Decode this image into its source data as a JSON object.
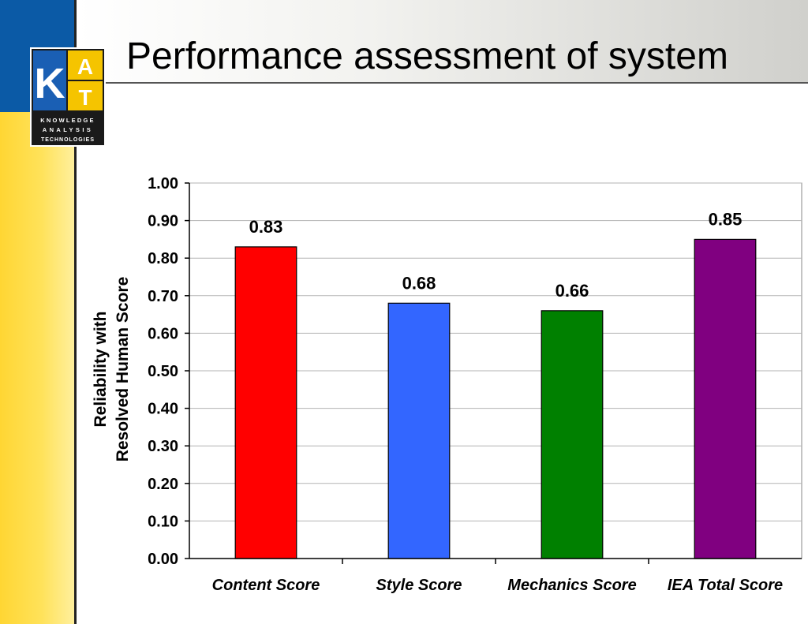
{
  "slide": {
    "title": "Performance assessment of system",
    "logo": {
      "letters": [
        "K",
        "A",
        "T"
      ],
      "lines": [
        "KNOWLEDGE",
        "ANALYSIS",
        "TECHNOLOGIES"
      ]
    }
  },
  "colors": {
    "accent_blue": "#0b5aa6",
    "accent_yellow": "#ffd633"
  },
  "chart_data": {
    "type": "bar",
    "title": "",
    "xlabel": "",
    "ylabel": [
      "Reliability with",
      "Resolved Human Score"
    ],
    "categories": [
      "Content Score",
      "Style Score",
      "Mechanics Score",
      "IEA Total Score"
    ],
    "values": [
      0.83,
      0.68,
      0.66,
      0.85
    ],
    "data_labels": [
      "0.83",
      "0.68",
      "0.66",
      "0.85"
    ],
    "bar_colors": [
      "#ff0000",
      "#3366ff",
      "#008000",
      "#800080"
    ],
    "ylim": [
      0,
      1
    ],
    "yticks": [
      "0.00",
      "0.10",
      "0.20",
      "0.30",
      "0.40",
      "0.50",
      "0.60",
      "0.70",
      "0.80",
      "0.90",
      "1.00"
    ],
    "grid": true,
    "legend": "none"
  }
}
